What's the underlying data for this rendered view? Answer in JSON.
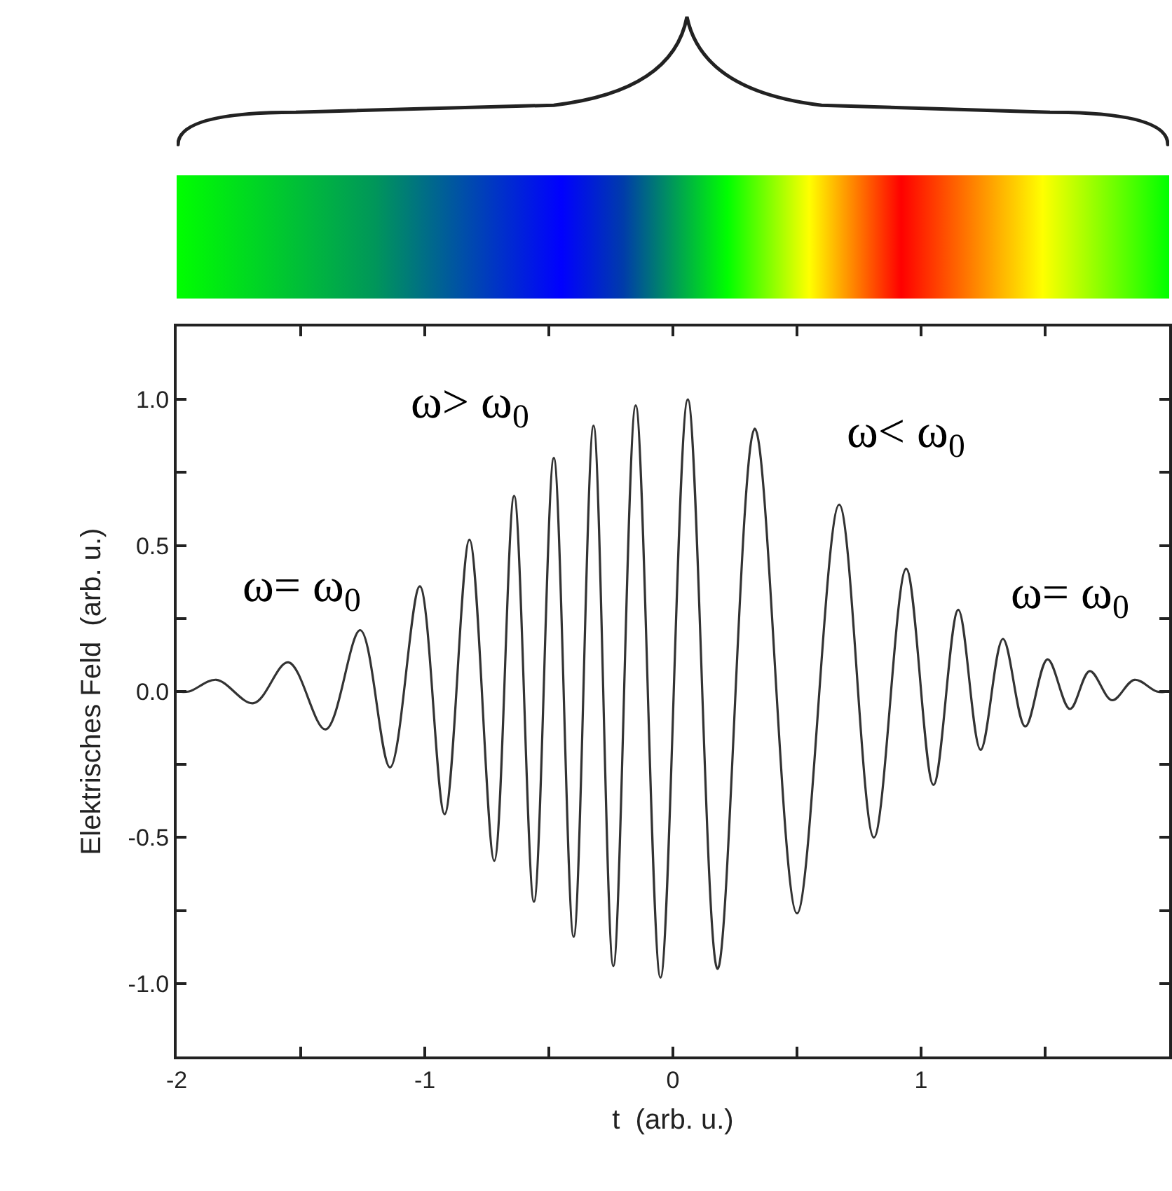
{
  "chart_data": {
    "type": "line",
    "xlabel": "t  (arb. u.)",
    "ylabel": "Elektrisches Feld  (arb. u.)",
    "annotations": [
      "ω= ω$_{0}$",
      "ω> ω$_{0}$",
      "ω< ω$_{0}$",
      "ω= ω$_{0}$"
    ],
    "x": [
      -2.0,
      -1.95,
      -1.84,
      -1.69,
      -1.55,
      -1.4,
      -1.26,
      -1.14,
      -1.02,
      -0.92,
      -0.82,
      -0.72,
      -0.64,
      -0.56,
      -0.48,
      -0.4,
      -0.32,
      -0.24,
      -0.15,
      -0.05,
      0.06,
      0.18,
      0.33,
      0.5,
      0.67,
      0.81,
      0.94,
      1.05,
      1.15,
      1.24,
      1.33,
      1.42,
      1.51,
      1.6,
      1.68,
      1.77,
      1.86,
      1.95,
      2.0
    ],
    "series": [
      {
        "color": "#333333",
        "values": [
          0.0,
          0.0,
          0.04,
          -0.04,
          0.1,
          -0.13,
          0.21,
          -0.26,
          0.36,
          -0.42,
          0.52,
          -0.58,
          0.67,
          -0.72,
          0.8,
          -0.84,
          0.91,
          -0.94,
          0.98,
          -0.98,
          1.0,
          -0.95,
          0.9,
          -0.76,
          0.64,
          -0.5,
          0.42,
          -0.32,
          0.28,
          -0.2,
          0.18,
          -0.12,
          0.11,
          -0.06,
          0.07,
          -0.03,
          0.04,
          0.0,
          0.0
        ]
      }
    ],
    "xlim": [
      -2,
      2
    ],
    "ylim": [
      -1.25,
      1.25
    ],
    "xticks": [
      -2,
      {
        "value": -1.5,
        "label": null
      },
      -1,
      {
        "value": -0.5,
        "label": null
      },
      0,
      {
        "value": 0.5,
        "label": null
      },
      1,
      {
        "value": 1.5,
        "label": null
      }
    ],
    "yticks": [
      {
        "value": -1.0,
        "label": "-1.0"
      },
      {
        "value": -0.75,
        "label": null
      },
      {
        "value": -0.5,
        "label": "-0.5"
      },
      {
        "value": -0.25,
        "label": null
      },
      {
        "value": 0.0,
        "label": "0.0"
      },
      {
        "value": 0.25,
        "label": null
      },
      {
        "value": 0.5,
        "label": "0.5"
      },
      {
        "value": 0.75,
        "label": null
      },
      {
        "value": 1.0,
        "label": "1.0"
      }
    ],
    "marker": "none",
    "line_style": "solid"
  }
}
